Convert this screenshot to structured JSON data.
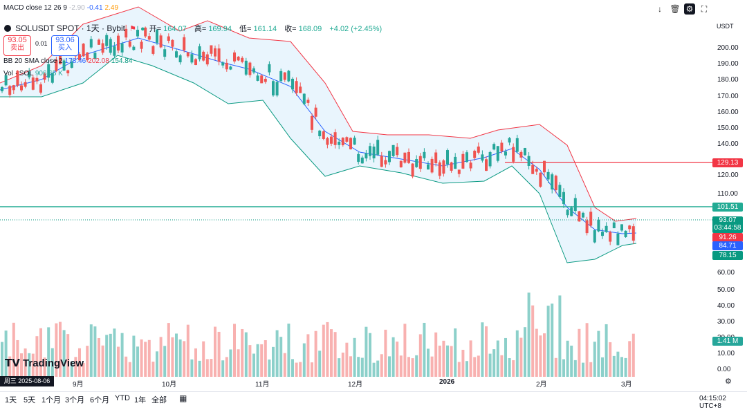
{
  "macd": {
    "label": "MACD",
    "params": "close 12 26 9",
    "v1": "-2.90",
    "v2": "-0.41",
    "v3": "2.49"
  },
  "header": {
    "symbol": "SOLUSDT SPOT · 1天 · Bybit",
    "open_label": "开=",
    "open": "164.07",
    "high_label": "高=",
    "high": "169.94",
    "low_label": "低=",
    "low": "161.14",
    "close_label": "收=",
    "close": "168.09",
    "change": "+4.02 (+2.45%)"
  },
  "trade": {
    "sell_price": "93.05",
    "sell_label": "卖出",
    "spread": "0.01",
    "buy_price": "93.06",
    "buy_label": "买入"
  },
  "bb_legend": {
    "name": "BB 20 SMA close 2",
    "v1": "178.46",
    "v2": "202.08",
    "v3": "154.84"
  },
  "vol_legend": {
    "name": "Vol · SOL",
    "value": "906.65 K"
  },
  "toolbar": {
    "currency": "USDT"
  },
  "axis": {
    "ticks": [
      {
        "label": "200.00",
        "v": 200
      },
      {
        "label": "190.00",
        "v": 190
      },
      {
        "label": "180.00",
        "v": 180
      },
      {
        "label": "170.00",
        "v": 170
      },
      {
        "label": "160.00",
        "v": 160
      },
      {
        "label": "150.00",
        "v": 150
      },
      {
        "label": "140.00",
        "v": 140
      },
      {
        "label": "120.00",
        "v": 120
      },
      {
        "label": "110.00",
        "v": 110
      },
      {
        "label": "60.00",
        "v": 60
      },
      {
        "label": "50.00",
        "v": 50
      },
      {
        "label": "40.00",
        "v": 40
      },
      {
        "label": "30.00",
        "v": 30
      },
      {
        "label": "20.00",
        "v": 20
      },
      {
        "label": "10.00",
        "v": 10
      },
      {
        "label": "0.00",
        "v": 0
      }
    ]
  },
  "price_labels": [
    {
      "text": "129.13",
      "color": "#f23645"
    },
    {
      "text": "101.51",
      "color": "#22ab94"
    },
    {
      "text": "93.07",
      "color": "#089981",
      "sub": "03:44:58"
    },
    {
      "text": "91.26",
      "color": "#f23645"
    },
    {
      "text": "84.71",
      "color": "#2962ff"
    },
    {
      "text": "78.15",
      "color": "#089981"
    },
    {
      "text": "1.41 M",
      "color": "#26a69a"
    }
  ],
  "months": [
    "9月",
    "10月",
    "11月",
    "12月",
    "2026",
    "2月",
    "3月"
  ],
  "date_badge": "周三 2025-08-06",
  "logo": "TradingView",
  "ranges": [
    "1天",
    "5天",
    "1个月",
    "3个月",
    "6个月",
    "YTD",
    "1年",
    "全部"
  ],
  "status": {
    "time": "04:15:02 UTC+8"
  },
  "colors": {
    "up": "#26a69a",
    "down": "#ef5350",
    "bb_upper": "#f23645",
    "bb_basis": "#2962ff",
    "bb_lower": "#089981",
    "bb_fill": "#e3f2fd"
  }
}
